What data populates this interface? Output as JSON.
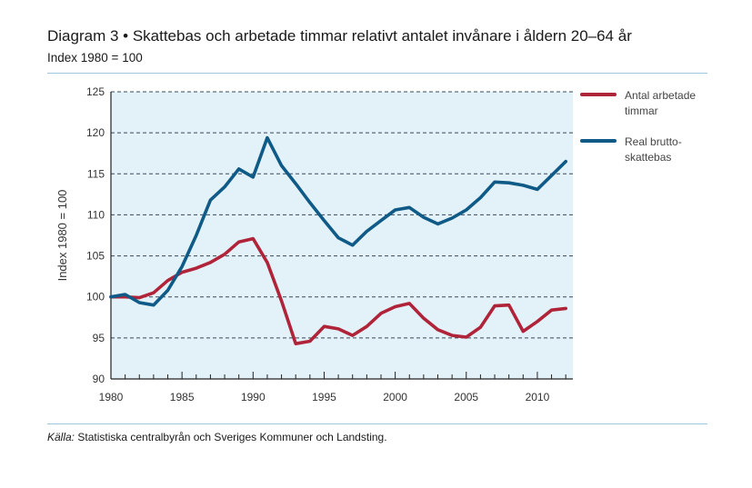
{
  "page": {
    "title": "Diagram 3 • Skattebas och arbetade timmar relativt antalet invånare i åldern 20–64 år",
    "subtitle": "Index 1980 = 100",
    "source_label": "Källa:",
    "source_text": " Statistiska centralbyrån och Sveriges Kommuner och Landsting."
  },
  "chart_data": {
    "type": "line",
    "title": "Skattebas och arbetade timmar relativt antalet invånare i åldern 20–64 år",
    "xlabel": "",
    "ylabel": "Index 1980 = 100",
    "xlim": [
      1980,
      2012.5
    ],
    "ylim": [
      90,
      125
    ],
    "yticks": [
      90,
      95,
      100,
      105,
      110,
      115,
      120,
      125
    ],
    "xticks": [
      1980,
      1985,
      1990,
      1995,
      2000,
      2005,
      2010
    ],
    "grid": "horizontal dashed",
    "legend": "right",
    "colors": {
      "background": "#e3f2f9",
      "grid": "#3a4a5a",
      "axis": "#222222"
    },
    "x": [
      1980,
      1981,
      1982,
      1983,
      1984,
      1985,
      1986,
      1987,
      1988,
      1989,
      1990,
      1991,
      1992,
      1993,
      1994,
      1995,
      1996,
      1997,
      1998,
      1999,
      2000,
      2001,
      2002,
      2003,
      2004,
      2005,
      2006,
      2007,
      2008,
      2009,
      2010,
      2011,
      2012
    ],
    "series": [
      {
        "name": "Antal arbetade timmar",
        "legend_lines": [
          "Antal arbetade",
          "timmar"
        ],
        "color": "#b0243a",
        "values": [
          100,
          100,
          99.9,
          100.5,
          102,
          103,
          103.5,
          104.2,
          105.2,
          106.7,
          107.1,
          104.2,
          99.5,
          94.3,
          94.6,
          96.4,
          96.1,
          95.3,
          96.4,
          98,
          98.8,
          99.2,
          97.4,
          96,
          95.3,
          95.1,
          96.3,
          98.9,
          99,
          95.8,
          97,
          98.4,
          98.6
        ]
      },
      {
        "name": "Real bruttoskattebas",
        "legend_lines": [
          "Real brutto-",
          "skattebas"
        ],
        "color": "#0f5a86",
        "values": [
          100,
          100.3,
          99.3,
          99,
          100.8,
          103.7,
          107.5,
          111.8,
          113.4,
          115.6,
          114.6,
          119.4,
          116,
          113.8,
          111.5,
          109.3,
          107.2,
          106.3,
          108,
          109.3,
          110.6,
          110.9,
          109.7,
          108.9,
          109.6,
          110.6,
          112.1,
          114,
          113.9,
          113.6,
          113.1,
          114.8,
          116.5
        ]
      }
    ]
  }
}
